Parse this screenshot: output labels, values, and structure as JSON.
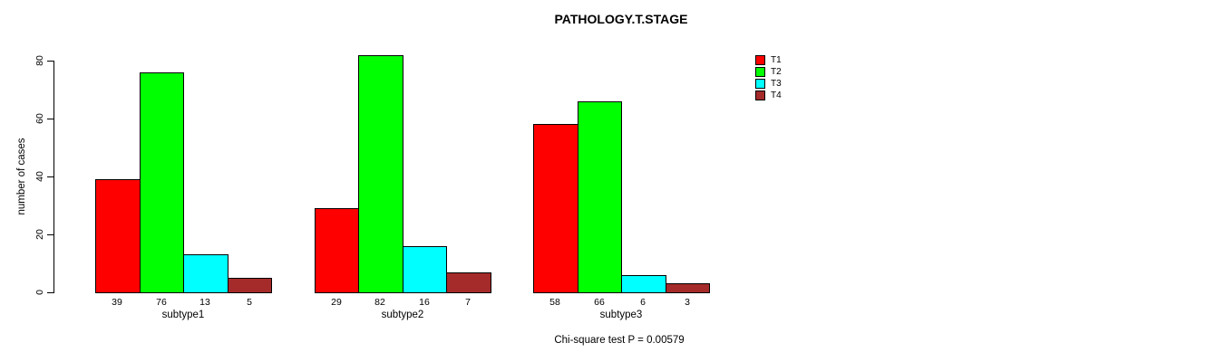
{
  "title": "PATHOLOGY.T.STAGE",
  "footer": "Chi-square test P = 0.00579",
  "y_axis": {
    "label": "number of cases",
    "tick_labels": [
      "0",
      "20",
      "40",
      "60",
      "80"
    ]
  },
  "legend": {
    "items": [
      {
        "label": "T1",
        "color": "#FF0000"
      },
      {
        "label": "T2",
        "color": "#00FF00"
      },
      {
        "label": "T3",
        "color": "#00FFFF"
      },
      {
        "label": "T4",
        "color": "#A52A2A"
      }
    ]
  },
  "chart_data": {
    "type": "bar",
    "title": "PATHOLOGY.T.STAGE",
    "xlabel": "",
    "ylabel": "number of cases",
    "categories": [
      "subtype1",
      "subtype2",
      "subtype3"
    ],
    "series": [
      {
        "name": "T1",
        "color": "#FF0000",
        "values": [
          39,
          29,
          58
        ]
      },
      {
        "name": "T2",
        "color": "#00FF00",
        "values": [
          76,
          82,
          66
        ]
      },
      {
        "name": "T3",
        "color": "#00FFFF",
        "values": [
          13,
          16,
          6
        ]
      },
      {
        "name": "T4",
        "color": "#A52A2A",
        "values": [
          5,
          7,
          3
        ]
      }
    ],
    "ylim": [
      0,
      80
    ],
    "yticks": [
      0,
      20,
      40,
      60,
      80
    ],
    "grid": false,
    "bar_value_labels": true,
    "legend_position": "top-right",
    "annotation": "Chi-square test P = 0.00579"
  }
}
